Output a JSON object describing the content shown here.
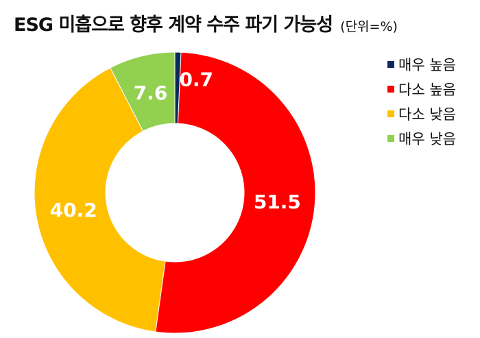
{
  "title": {
    "main": "ESG 미흡으로 향후 계약 수주 파기 가능성",
    "unit": "(단위=%)"
  },
  "chart_data": {
    "type": "pie",
    "variant": "donut",
    "start": "top, clockwise",
    "legend_position": "right",
    "categories": [
      "매우 높음",
      "다소 높음",
      "다소 낮음",
      "매우 낮음"
    ],
    "values": [
      0.7,
      51.5,
      40.2,
      7.6
    ],
    "labels": [
      "0.7",
      "51.5",
      "40.2",
      "7.6"
    ],
    "colors": [
      "#0b2a5c",
      "#ff0000",
      "#ffc000",
      "#92d050"
    ]
  }
}
